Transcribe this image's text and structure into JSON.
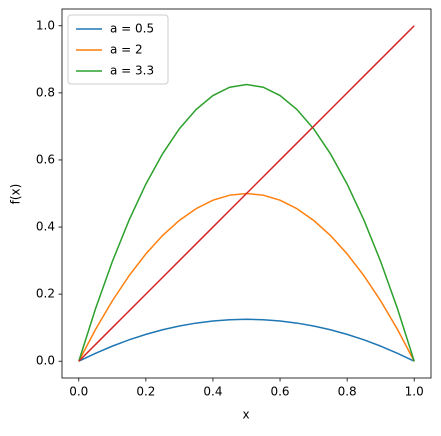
{
  "chart_data": {
    "type": "line",
    "xlabel": "x",
    "ylabel": "f(x)",
    "x": [
      0,
      0.05,
      0.1,
      0.15,
      0.2,
      0.25,
      0.3,
      0.35,
      0.4,
      0.45,
      0.5,
      0.55,
      0.6,
      0.65,
      0.7,
      0.75,
      0.8,
      0.85,
      0.9,
      0.95,
      1
    ],
    "series": [
      {
        "name": "a = 0.5",
        "color": "#1f77b4",
        "values": [
          0,
          0.02375,
          0.045,
          0.06375,
          0.08,
          0.09375,
          0.105,
          0.11375,
          0.12,
          0.12375,
          0.125,
          0.12375,
          0.12,
          0.11375,
          0.105,
          0.09375,
          0.08,
          0.06375,
          0.045,
          0.02375,
          0
        ]
      },
      {
        "name": "a = 2",
        "color": "#ff7f0e",
        "values": [
          0,
          0.095,
          0.18,
          0.255,
          0.32,
          0.375,
          0.42,
          0.455,
          0.48,
          0.495,
          0.5,
          0.495,
          0.48,
          0.455,
          0.42,
          0.375,
          0.32,
          0.255,
          0.18,
          0.095,
          0
        ]
      },
      {
        "name": "a = 3.3",
        "color": "#2ca02c",
        "values": [
          0,
          0.15675,
          0.297,
          0.42075,
          0.528,
          0.61875,
          0.693,
          0.75075,
          0.792,
          0.81675,
          0.825,
          0.81675,
          0.792,
          0.75075,
          0.693,
          0.61875,
          0.528,
          0.42075,
          0.297,
          0.15675,
          0
        ]
      },
      {
        "color": "#d62728",
        "values": [
          0,
          0.05,
          0.1,
          0.15,
          0.2,
          0.25,
          0.3,
          0.35,
          0.4,
          0.45,
          0.5,
          0.55,
          0.6,
          0.65,
          0.7,
          0.75,
          0.8,
          0.85,
          0.9,
          0.95,
          1
        ]
      }
    ],
    "xlim": [
      -0.05,
      1.05
    ],
    "ylim": [
      -0.05,
      1.05
    ],
    "xticks": [
      {
        "value": 0,
        "label": "0.0"
      },
      0.2,
      0.4,
      0.6,
      0.8,
      {
        "value": 1,
        "label": "1.0"
      }
    ],
    "yticks": [
      {
        "value": 0,
        "label": "0.0"
      },
      0.2,
      0.4,
      0.6,
      0.8,
      {
        "value": 1,
        "label": "1.0"
      }
    ],
    "grid": false,
    "legend": "upper left"
  }
}
